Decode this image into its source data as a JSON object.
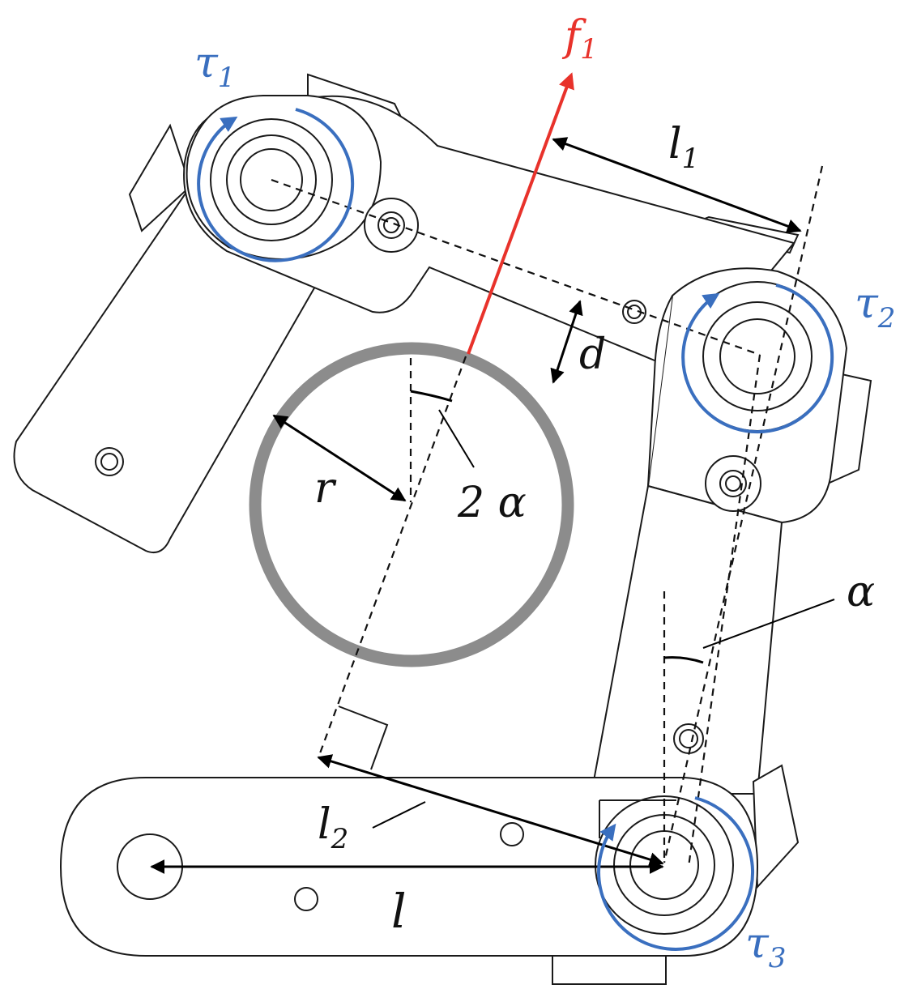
{
  "colors": {
    "torque": "#3a6fbf",
    "force": "#e8322b",
    "object": "#8c8c8c",
    "ink": "#111111"
  },
  "labels": {
    "tau1": {
      "symbol": "τ",
      "sub": "1"
    },
    "tau2": {
      "symbol": "τ",
      "sub": "2"
    },
    "tau3": {
      "symbol": "τ",
      "sub": "3"
    },
    "f1": {
      "symbol": "f",
      "sub": "1"
    },
    "l1": {
      "symbol": "l",
      "sub": "1"
    },
    "l2": {
      "symbol": "l",
      "sub": "2"
    },
    "l": "l",
    "d": "d",
    "r": "r",
    "alpha": "α",
    "two_alpha": "2 α"
  }
}
